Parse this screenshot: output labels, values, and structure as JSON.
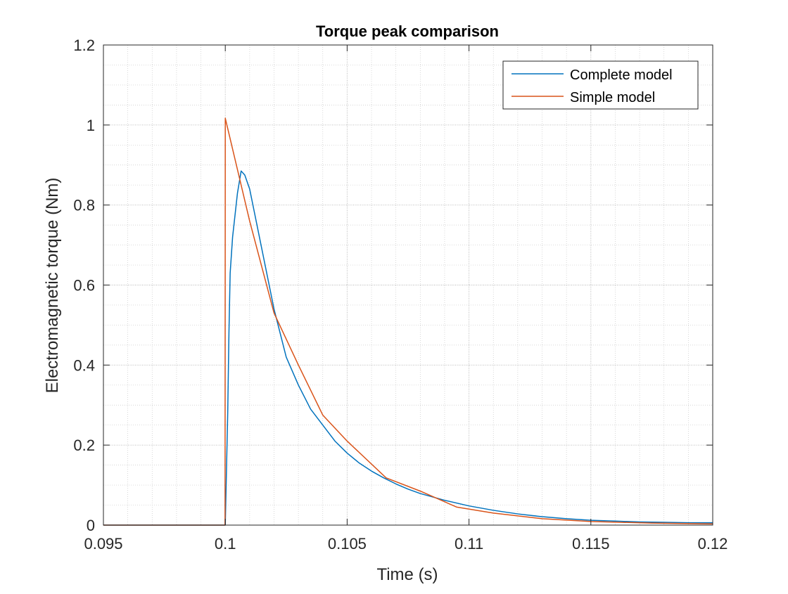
{
  "chart_data": {
    "type": "line",
    "title": "Torque peak comparison",
    "xlabel": "Time (s)",
    "ylabel": "Electromagnetic torque (Nm)",
    "xlim": [
      0.095,
      0.12
    ],
    "ylim": [
      0,
      1.2
    ],
    "xticks": [
      0.095,
      0.1,
      0.105,
      0.11,
      0.115,
      0.12
    ],
    "xtick_labels": [
      "0.095",
      "0.1",
      "0.105",
      "0.11",
      "0.115",
      "0.12"
    ],
    "yticks": [
      0,
      0.2,
      0.4,
      0.6,
      0.8,
      1,
      1.2
    ],
    "ytick_labels": [
      "0",
      "0.2",
      "0.4",
      "0.6",
      "0.8",
      "1",
      "1.2"
    ],
    "grid": true,
    "minor_grid": true,
    "legend_position": "top-right",
    "series": [
      {
        "name": "Complete model",
        "color": "#0072BD",
        "x": [
          0.095,
          0.1,
          0.1001,
          0.10015,
          0.1002,
          0.1003,
          0.1005,
          0.10065,
          0.1008,
          0.101,
          0.1015,
          0.102,
          0.1025,
          0.103,
          0.1035,
          0.104,
          0.1045,
          0.105,
          0.1055,
          0.106,
          0.1065,
          0.107,
          0.1075,
          0.108,
          0.109,
          0.11,
          0.111,
          0.112,
          0.113,
          0.114,
          0.115,
          0.116,
          0.117,
          0.118,
          0.119,
          0.12
        ],
        "y": [
          0,
          0,
          0.28,
          0.48,
          0.63,
          0.72,
          0.83,
          0.885,
          0.875,
          0.84,
          0.69,
          0.54,
          0.42,
          0.35,
          0.29,
          0.25,
          0.21,
          0.18,
          0.155,
          0.135,
          0.118,
          0.103,
          0.09,
          0.079,
          0.062,
          0.048,
          0.037,
          0.028,
          0.021,
          0.016,
          0.012,
          0.01,
          0.008,
          0.007,
          0.006,
          0.006
        ]
      },
      {
        "name": "Simple model",
        "color": "#D95319",
        "x": [
          0.095,
          0.09999,
          0.1,
          0.101,
          0.102,
          0.103,
          0.104,
          0.105,
          0.1066,
          0.108,
          0.1095,
          0.111,
          0.113,
          0.115,
          0.1175,
          0.12
        ],
        "y": [
          0,
          0,
          1.017,
          0.76,
          0.53,
          0.4,
          0.275,
          0.21,
          0.118,
          0.085,
          0.045,
          0.03,
          0.016,
          0.009,
          0.005,
          0.003
        ]
      }
    ]
  }
}
